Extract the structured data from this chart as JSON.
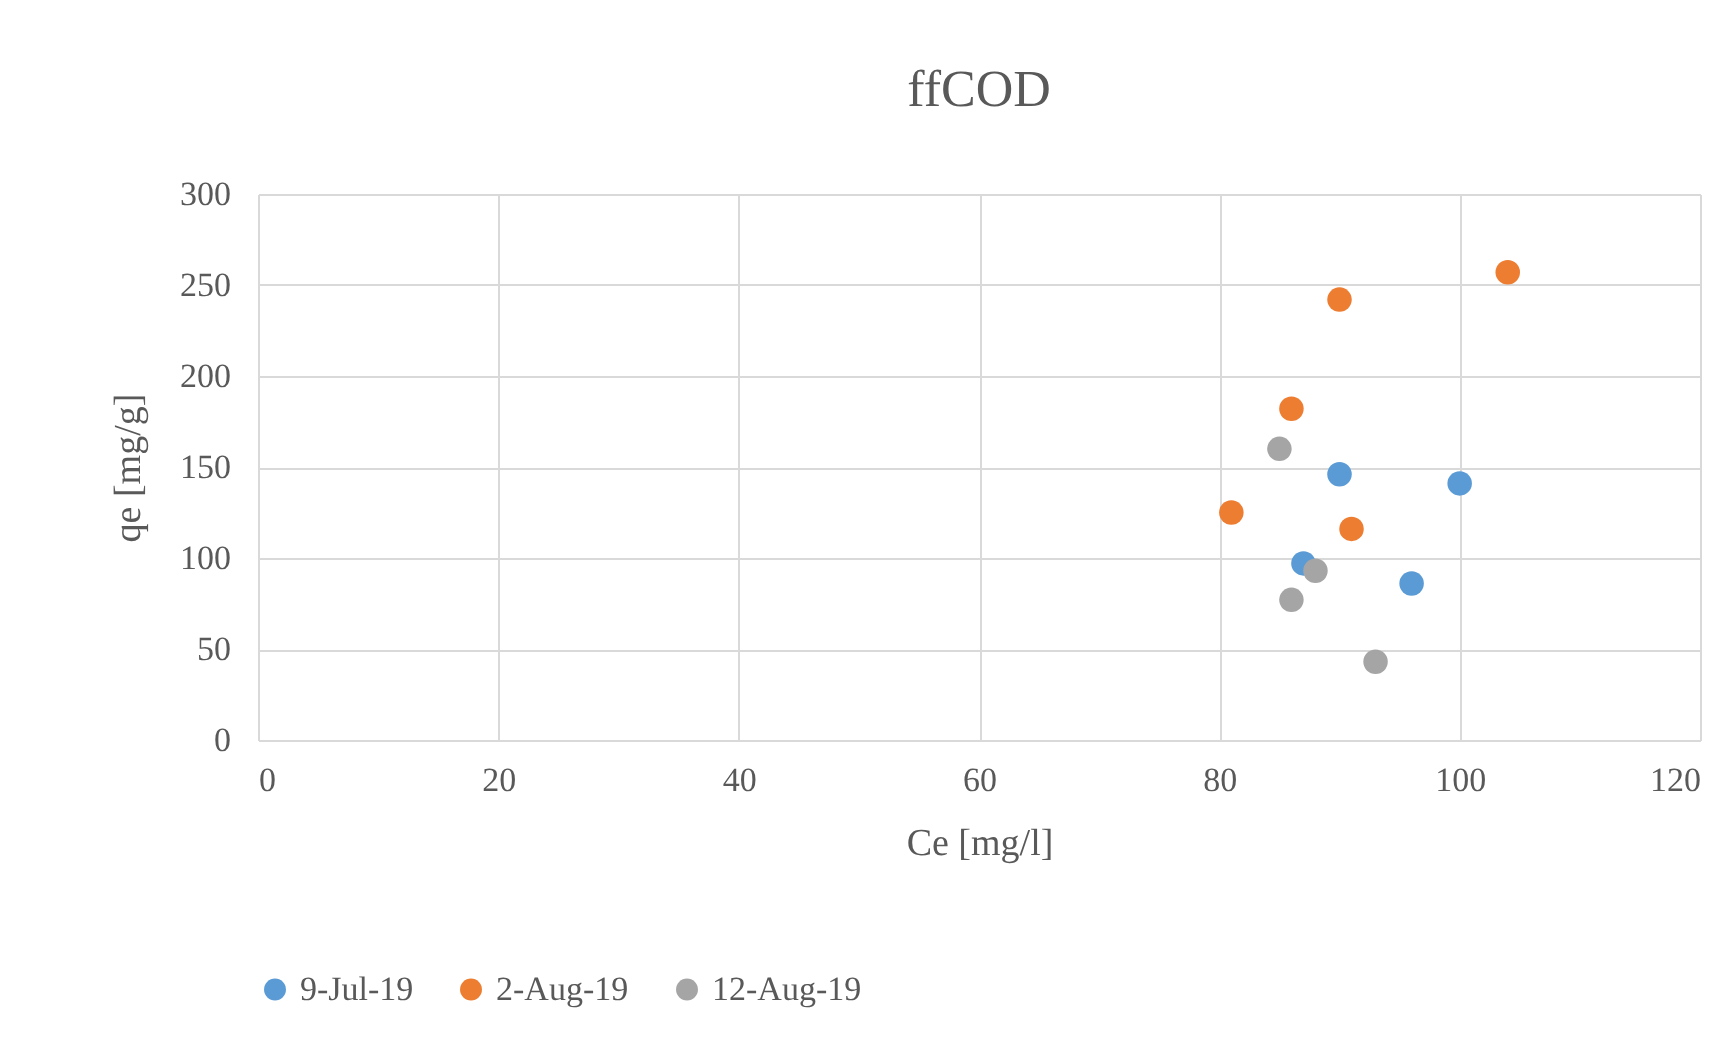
{
  "chart_data": {
    "type": "scatter",
    "title": "ffCOD",
    "xlabel": "Ce [mg/l]",
    "ylabel": "qe [mg/g]",
    "xlim": [
      0,
      120
    ],
    "xticks": [
      0,
      20,
      40,
      60,
      80,
      100,
      120
    ],
    "ylim": [
      0,
      300
    ],
    "yticks": [
      0,
      50,
      100,
      150,
      200,
      250,
      300
    ],
    "grid": true,
    "legend": "bottom",
    "marker": "circle",
    "series": [
      {
        "name": "9-Jul-19",
        "color": "#5b9bd5",
        "x": [
          87,
          90,
          100,
          96
        ],
        "values": [
          97,
          146,
          141,
          86
        ]
      },
      {
        "name": "2-Aug-19",
        "color": "#ed7d31",
        "x": [
          104,
          90,
          86,
          81,
          91
        ],
        "values": [
          257,
          242,
          182,
          125,
          116
        ]
      },
      {
        "name": "12-Aug-19",
        "color": "#a5a5a5",
        "x": [
          85,
          88,
          86,
          93
        ],
        "values": [
          160,
          93,
          77,
          43
        ]
      }
    ]
  }
}
